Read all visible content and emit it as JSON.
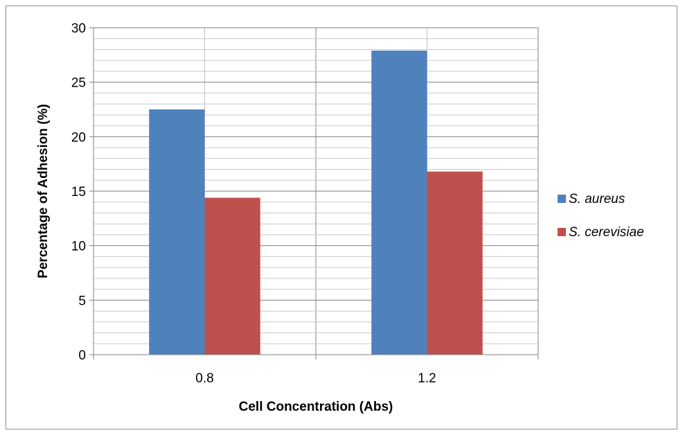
{
  "chart_data": {
    "type": "bar",
    "categories": [
      "0.8",
      "1.2"
    ],
    "series": [
      {
        "name": "S. aureus",
        "values": [
          22.5,
          27.9
        ],
        "color": "#4f81bd"
      },
      {
        "name": "S. cerevisiae",
        "values": [
          14.4,
          16.8
        ],
        "color": "#c0504d"
      }
    ],
    "xlabel": "Cell Concentration (Abs)",
    "ylabel": "Percentage  of Adhesion (%)",
    "ylim": [
      0,
      30
    ],
    "yticks": [
      "0",
      "5",
      "10",
      "15",
      "20",
      "25",
      "30"
    ],
    "major_step": 5,
    "minor_step": 1,
    "grid": true,
    "legend_position": "right"
  }
}
